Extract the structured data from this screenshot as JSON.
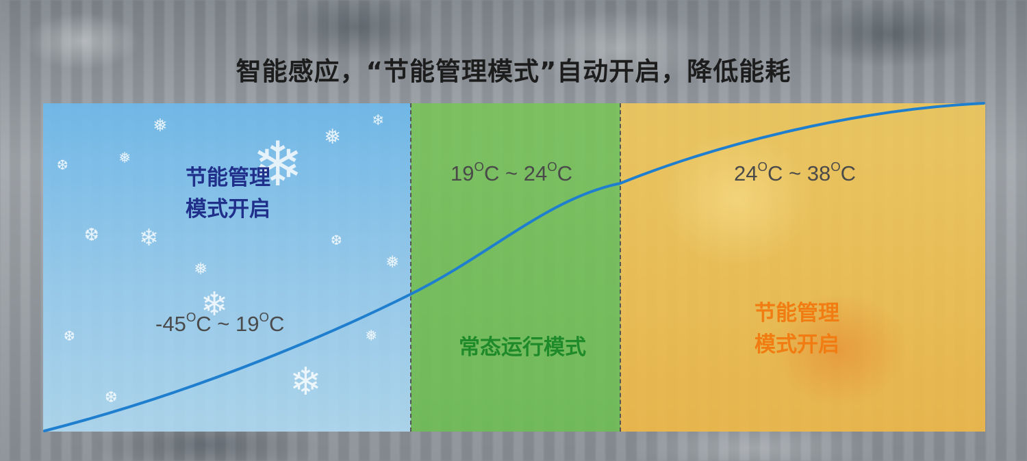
{
  "headline": "智能感应，“节能管理模式”自动开启，降低能耗",
  "zones": {
    "cold": {
      "mode_line1": "节能管理",
      "mode_line2": "模式开启",
      "range_low": "-45",
      "range_high": "19",
      "unit_sup": "O",
      "unit_letter": "C",
      "separator": "~"
    },
    "normal": {
      "mode": "常态运行模式",
      "range_low": "19",
      "range_high": "24",
      "unit_sup": "O",
      "unit_letter": "C",
      "separator": "~"
    },
    "hot": {
      "mode_line1": "节能管理",
      "mode_line2": "模式开启",
      "range_low": "24",
      "range_high": "38",
      "unit_sup": "O",
      "unit_letter": "C",
      "separator": "~"
    }
  },
  "colors": {
    "cold_mode_text": "#1f2f8a",
    "normal_mode_text": "#1f8a2a",
    "hot_mode_text": "#f07c12",
    "curve": "#1f7fce"
  },
  "icons": [
    "snowflake-icon"
  ]
}
